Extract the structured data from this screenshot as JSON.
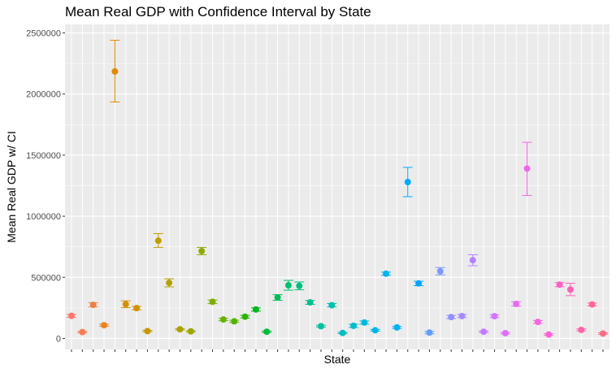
{
  "chart_data": {
    "type": "scatter",
    "title": "Mean Real GDP with Confidence Interval by State",
    "xlabel": "State",
    "ylabel": "Mean Real GDP w/ CI",
    "ylim": [
      -90000,
      2570000
    ],
    "y_ticks": [
      0,
      500000,
      1000000,
      1500000,
      2000000,
      2500000
    ],
    "y_tick_labels": [
      "0",
      "500000",
      "1000000",
      "1500000",
      "2000000",
      "2500000"
    ],
    "x_tick_labels_shown": false,
    "grid": true,
    "legend": "none",
    "error_bars": true,
    "points": [
      {
        "mean": 185000,
        "lower": 173000,
        "upper": 197000,
        "color": "#F8766D"
      },
      {
        "mean": 52000,
        "lower": 46000,
        "upper": 58000,
        "color": "#F47D51"
      },
      {
        "mean": 275000,
        "lower": 258000,
        "upper": 292000,
        "color": "#EE8043"
      },
      {
        "mean": 108000,
        "lower": 99000,
        "upper": 117000,
        "color": "#E88526"
      },
      {
        "mean": 2185000,
        "lower": 1935000,
        "upper": 2440000,
        "color": "#E08B00"
      },
      {
        "mean": 280000,
        "lower": 252000,
        "upper": 308000,
        "color": "#D89000"
      },
      {
        "mean": 248000,
        "lower": 234000,
        "upper": 262000,
        "color": "#CF9400"
      },
      {
        "mean": 60000,
        "lower": 54000,
        "upper": 66000,
        "color": "#C99800"
      },
      {
        "mean": 800000,
        "lower": 745000,
        "upper": 858000,
        "color": "#BF9C00"
      },
      {
        "mean": 455000,
        "lower": 422000,
        "upper": 488000,
        "color": "#B5A000"
      },
      {
        "mean": 75000,
        "lower": 69000,
        "upper": 81000,
        "color": "#AAA300"
      },
      {
        "mean": 58000,
        "lower": 52000,
        "upper": 64000,
        "color": "#9EA700"
      },
      {
        "mean": 715000,
        "lower": 685000,
        "upper": 745000,
        "color": "#8FAA00"
      },
      {
        "mean": 300000,
        "lower": 285000,
        "upper": 315000,
        "color": "#7FAE00"
      },
      {
        "mean": 155000,
        "lower": 145000,
        "upper": 165000,
        "color": "#6BB100"
      },
      {
        "mean": 140000,
        "lower": 131000,
        "upper": 149000,
        "color": "#53B400"
      },
      {
        "mean": 178000,
        "lower": 167000,
        "upper": 189000,
        "color": "#2BB600"
      },
      {
        "mean": 237000,
        "lower": 223000,
        "upper": 251000,
        "color": "#00B81F"
      },
      {
        "mean": 55000,
        "lower": 49000,
        "upper": 61000,
        "color": "#00BA38"
      },
      {
        "mean": 335000,
        "lower": 312000,
        "upper": 358000,
        "color": "#00BC59"
      },
      {
        "mean": 435000,
        "lower": 395000,
        "upper": 475000,
        "color": "#00BE6C"
      },
      {
        "mean": 430000,
        "lower": 398000,
        "upper": 462000,
        "color": "#00BF7D"
      },
      {
        "mean": 295000,
        "lower": 279000,
        "upper": 311000,
        "color": "#00C08E"
      },
      {
        "mean": 100000,
        "lower": 92000,
        "upper": 108000,
        "color": "#00C19F"
      },
      {
        "mean": 272000,
        "lower": 258000,
        "upper": 286000,
        "color": "#00C0AF"
      },
      {
        "mean": 45000,
        "lower": 39000,
        "upper": 51000,
        "color": "#00BFBE"
      },
      {
        "mean": 103000,
        "lower": 90000,
        "upper": 116000,
        "color": "#00BDCC"
      },
      {
        "mean": 130000,
        "lower": 117000,
        "upper": 143000,
        "color": "#00BBD9"
      },
      {
        "mean": 67000,
        "lower": 60000,
        "upper": 74000,
        "color": "#00B8E5"
      },
      {
        "mean": 530000,
        "lower": 517000,
        "upper": 543000,
        "color": "#00B4EF"
      },
      {
        "mean": 90000,
        "lower": 82000,
        "upper": 98000,
        "color": "#00B0F6"
      },
      {
        "mean": 1280000,
        "lower": 1160000,
        "upper": 1400000,
        "color": "#00ABFD"
      },
      {
        "mean": 450000,
        "lower": 432000,
        "upper": 468000,
        "color": "#00A5FF"
      },
      {
        "mean": 48000,
        "lower": 38000,
        "upper": 58000,
        "color": "#619CFF"
      },
      {
        "mean": 550000,
        "lower": 520000,
        "upper": 580000,
        "color": "#7E96FF"
      },
      {
        "mean": 175000,
        "lower": 162000,
        "upper": 188000,
        "color": "#938FFF"
      },
      {
        "mean": 183000,
        "lower": 170000,
        "upper": 196000,
        "color": "#A688FF"
      },
      {
        "mean": 640000,
        "lower": 595000,
        "upper": 685000,
        "color": "#B680FF"
      },
      {
        "mean": 55000,
        "lower": 49000,
        "upper": 61000,
        "color": "#C57AFF"
      },
      {
        "mean": 182000,
        "lower": 170000,
        "upper": 194000,
        "color": "#D274FC"
      },
      {
        "mean": 43000,
        "lower": 37000,
        "upper": 49000,
        "color": "#DD6FF5"
      },
      {
        "mean": 282000,
        "lower": 264000,
        "upper": 300000,
        "color": "#E76BF3"
      },
      {
        "mean": 1390000,
        "lower": 1170000,
        "upper": 1605000,
        "color": "#F066EA"
      },
      {
        "mean": 135000,
        "lower": 123000,
        "upper": 147000,
        "color": "#F664E0"
      },
      {
        "mean": 32000,
        "lower": 25000,
        "upper": 39000,
        "color": "#FA62D4"
      },
      {
        "mean": 440000,
        "lower": 423000,
        "upper": 457000,
        "color": "#FC61C5"
      },
      {
        "mean": 400000,
        "lower": 350000,
        "upper": 452000,
        "color": "#FF61B8"
      },
      {
        "mean": 70000,
        "lower": 62000,
        "upper": 78000,
        "color": "#FF63A9"
      },
      {
        "mean": 278000,
        "lower": 266000,
        "upper": 290000,
        "color": "#FF6698"
      },
      {
        "mean": 40000,
        "lower": 34000,
        "upper": 46000,
        "color": "#FC6C87"
      }
    ]
  }
}
